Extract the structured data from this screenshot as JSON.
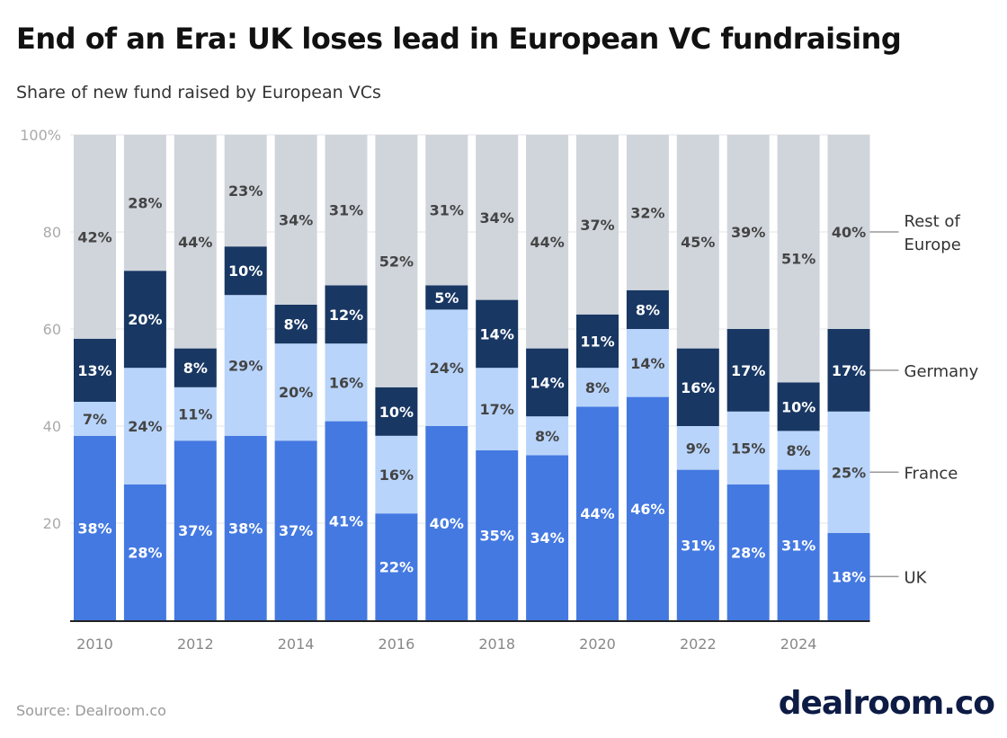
{
  "header": {
    "title": "End of an Era: UK loses lead in European VC fundraising",
    "subtitle": "Share of new fund raised by European VCs"
  },
  "footer": {
    "source": "Source: Dealroom.co",
    "logo": "dealroom.co"
  },
  "chart_data": {
    "type": "bar",
    "stacked": true,
    "title": "End of an Era: UK loses lead in European VC fundraising",
    "subtitle": "Share of new fund raised by European VCs",
    "xlabel": "",
    "ylabel": "",
    "ylim": [
      0,
      100
    ],
    "yticks": [
      "20",
      "40",
      "60",
      "80",
      "100%"
    ],
    "ytick_values": [
      20,
      40,
      60,
      80,
      100
    ],
    "grid": true,
    "legend_placement": "right (inline labels)",
    "categories": [
      "2010",
      "2011",
      "2012",
      "2013",
      "2014",
      "2015",
      "2016",
      "2017",
      "2018",
      "2019",
      "2020",
      "2021",
      "2022",
      "2023",
      "2024",
      "2025"
    ],
    "xtick_labels": [
      "2010",
      "",
      "2012",
      "",
      "2014",
      "",
      "2016",
      "",
      "2018",
      "",
      "2020",
      "",
      "2022",
      "",
      "2024",
      ""
    ],
    "series": [
      {
        "name": "UK",
        "color": "#4479e1",
        "label_color": "#ffffff",
        "values": [
          38,
          28,
          37,
          38,
          37,
          41,
          22,
          40,
          35,
          34,
          44,
          46,
          31,
          28,
          31,
          18
        ]
      },
      {
        "name": "France",
        "color": "#b8d4fb",
        "label_color": "#444444",
        "values": [
          7,
          24,
          11,
          29,
          20,
          16,
          16,
          24,
          17,
          8,
          8,
          14,
          9,
          15,
          8,
          25
        ]
      },
      {
        "name": "Germany",
        "color": "#183763",
        "label_color": "#ffffff",
        "values": [
          13,
          20,
          8,
          10,
          8,
          12,
          10,
          5,
          14,
          14,
          11,
          8,
          16,
          17,
          10,
          17
        ]
      },
      {
        "name": "Rest of Europe",
        "color": "#d0d5dc",
        "label_color": "#444444",
        "values": [
          42,
          28,
          44,
          23,
          34,
          31,
          52,
          31,
          34,
          44,
          37,
          32,
          45,
          39,
          51,
          40
        ]
      }
    ],
    "legend": [
      "Rest of Europe",
      "Germany",
      "France",
      "UK"
    ]
  }
}
